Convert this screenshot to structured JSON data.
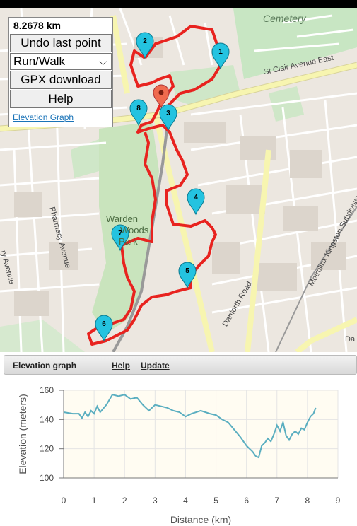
{
  "control": {
    "distance": "8.2678 km",
    "undo_label": "Undo last point",
    "mode_value": "Run/Walk",
    "gpx_label": "GPX download",
    "help_label": "Help",
    "elevation_link": "Elevation Graph"
  },
  "map_labels": {
    "cemetery": "Cemetery",
    "st_clair": "St Clair Avenue East",
    "pharmacy": "Pharmacy Avenue",
    "warden1": "Warden",
    "warden2": "Woods",
    "warden3": "Park",
    "danforth": "Danforth Road",
    "metrolinx": "Metrolinx Kingston Subdivision",
    "avenue_left": "ry Avenue",
    "left_top": "A",
    "dar": "Da"
  },
  "markers": [
    "1",
    "2",
    "3",
    "4",
    "5",
    "6",
    "7",
    "8"
  ],
  "panel": {
    "title": "Elevation graph",
    "help": "Help",
    "update": "Update"
  },
  "chart_data": {
    "type": "line",
    "xlabel": "Distance (km)",
    "ylabel": "Elevation (meters)",
    "xlim": [
      0,
      9
    ],
    "ylim": [
      100,
      160
    ],
    "xticks": [
      "0",
      "1",
      "2",
      "3",
      "4",
      "5",
      "6",
      "7",
      "8",
      "9"
    ],
    "yticks": [
      "100",
      "120",
      "140",
      "160"
    ],
    "grid": true,
    "color": "#5aaec0",
    "x": [
      0,
      0.3,
      0.5,
      0.6,
      0.7,
      0.8,
      0.9,
      1.0,
      1.1,
      1.2,
      1.4,
      1.6,
      1.8,
      2.0,
      2.2,
      2.4,
      2.6,
      2.8,
      3.0,
      3.2,
      3.4,
      3.6,
      3.8,
      4.0,
      4.2,
      4.5,
      4.8,
      5.0,
      5.2,
      5.4,
      5.6,
      5.8,
      6.0,
      6.2,
      6.3,
      6.4,
      6.5,
      6.6,
      6.7,
      6.8,
      6.9,
      7.0,
      7.1,
      7.2,
      7.3,
      7.4,
      7.5,
      7.6,
      7.7,
      7.8,
      7.9,
      8.0,
      8.1,
      8.2,
      8.27
    ],
    "y": [
      145,
      144,
      144,
      141,
      145,
      142,
      146,
      144,
      149,
      145,
      150,
      157,
      156,
      157,
      154,
      155,
      150,
      146,
      150,
      149,
      148,
      146,
      145,
      142,
      144,
      146,
      144,
      143,
      140,
      138,
      133,
      128,
      122,
      118,
      115,
      114,
      122,
      124,
      127,
      125,
      130,
      136,
      132,
      138,
      129,
      126,
      130,
      132,
      130,
      134,
      133,
      138,
      142,
      144,
      148
    ]
  }
}
